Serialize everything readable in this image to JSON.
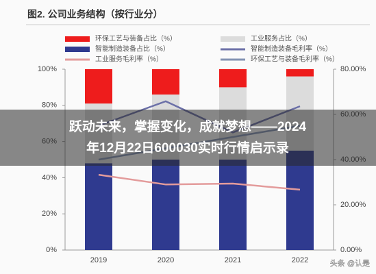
{
  "chart_data": {
    "type": "bar",
    "stacked": true,
    "title": "图2. 公司业务结构（按行业分）",
    "categories": [
      "2019",
      "2020",
      "2021",
      "2022"
    ],
    "series": [
      {
        "name": "环保工艺与装备占比（%）",
        "color": "#ee1c1c",
        "values": [
          19,
          14,
          10,
          4
        ]
      },
      {
        "name": "工业服务占比（%）",
        "color": "#dcdcdc",
        "values": [
          33,
          36,
          40,
          41
        ]
      },
      {
        "name": "智能制造装备占比（%）",
        "color": "#2f3a8f",
        "values": [
          48,
          50,
          50,
          55
        ]
      },
      {
        "name": "智能制造装备毛利率（%）",
        "color": "#6c70a8",
        "axis": "y2",
        "values": [
          55,
          65.8,
          52,
          63.6
        ]
      },
      {
        "name": "工业服务毛利率（%）",
        "color": "#e39b9b",
        "axis": "y2",
        "values": [
          33.3,
          29,
          29.4,
          26.7
        ]
      },
      {
        "name": "环保工艺与装备毛利率（%）",
        "color": "#8393b3",
        "axis": "y2",
        "values": [
          40,
          45,
          50,
          55
        ]
      }
    ],
    "ylim": [
      0,
      100
    ],
    "yticks": [
      {
        "value": 0,
        "label": "0%"
      },
      {
        "value": 20,
        "label": "20%"
      },
      {
        "value": 40,
        "label": "40%"
      },
      {
        "value": 60,
        "label": "60%"
      },
      {
        "value": 80,
        "label": "80%"
      },
      {
        "value": 100,
        "label": "100%"
      }
    ],
    "y2lim": [
      0,
      80
    ],
    "y2ticks": [
      {
        "value": 0,
        "label": "0.00%"
      },
      {
        "value": 20,
        "label": "20.00%"
      },
      {
        "value": 40,
        "label": "40.00%"
      },
      {
        "value": 60,
        "label": "60.00%"
      },
      {
        "value": 80,
        "label": "80.00%"
      }
    ]
  },
  "overlay_text": [
    "跃动未来，掌握变化，成就梦想——2024",
    "年12月22日600030实时行情启示录"
  ],
  "watermark": "头条 @认是"
}
